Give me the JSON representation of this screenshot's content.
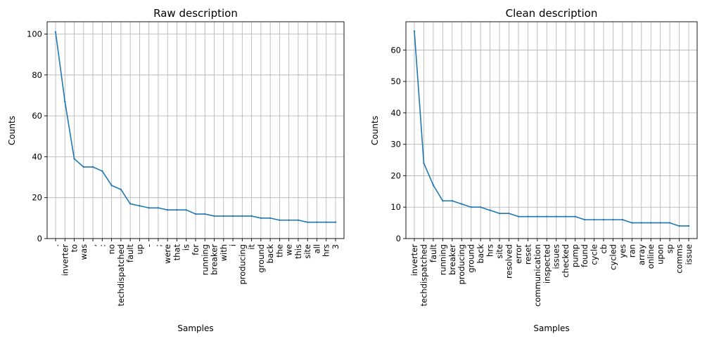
{
  "chart_data": [
    {
      "type": "line",
      "title": "Raw description",
      "xlabel": "Samples",
      "ylabel": "Counts",
      "ylim": [
        0,
        106
      ],
      "yticks": [
        0,
        20,
        40,
        60,
        80,
        100
      ],
      "grid": true,
      "color": "#1f77b4",
      "categories": [
        ".",
        "inverter",
        "to",
        "was",
        ",",
        ":",
        "no",
        "techdispatched",
        "fault",
        "up",
        "-",
        ";",
        "were",
        "that",
        "is",
        "for",
        "running",
        "breaker",
        "with",
        "i",
        "producing",
        "it",
        "ground",
        "back",
        "the",
        "we",
        "this",
        "site",
        "all",
        "hrs",
        "3"
      ],
      "values": [
        101,
        67,
        39,
        35,
        35,
        33,
        26,
        24,
        17,
        16,
        15,
        15,
        14,
        14,
        14,
        12,
        12,
        11,
        11,
        11,
        11,
        11,
        10,
        10,
        9,
        9,
        9,
        8,
        8,
        8,
        8
      ]
    },
    {
      "type": "line",
      "title": "Clean description",
      "xlabel": "Samples",
      "ylabel": "Counts",
      "ylim": [
        0,
        69
      ],
      "yticks": [
        0,
        10,
        20,
        30,
        40,
        50,
        60
      ],
      "grid": true,
      "color": "#1f77b4",
      "categories": [
        "inverter",
        "techdispatched",
        "fault",
        "running",
        "breaker",
        "producing",
        "ground",
        "back",
        "hrs",
        "site",
        "resolved",
        "error",
        "reset",
        "communication",
        "inspected",
        "issues",
        "checked",
        "pump",
        "found",
        "cycle",
        "cb",
        "cycled",
        "yes",
        "ran",
        "array",
        "online",
        "upon",
        "sp",
        "comms",
        "issue"
      ],
      "values": [
        66,
        24,
        17,
        12,
        12,
        11,
        10,
        10,
        9,
        8,
        8,
        7,
        7,
        7,
        7,
        7,
        7,
        7,
        6,
        6,
        6,
        6,
        6,
        5,
        5,
        5,
        5,
        5,
        4,
        4
      ]
    }
  ]
}
